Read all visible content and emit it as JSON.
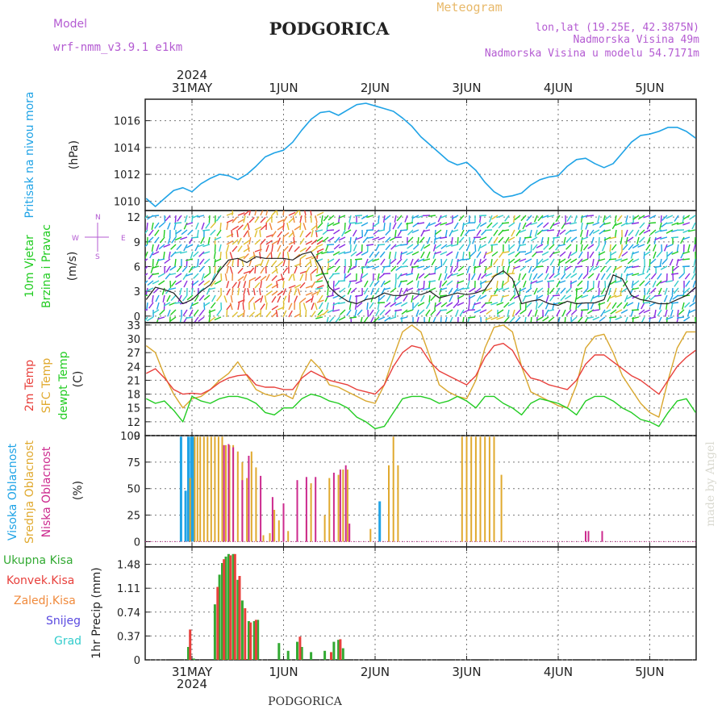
{
  "header": {
    "model_label": "Model",
    "model_name": "wrf-nmm_v3.9.1 e1km",
    "city": "PODGORICA",
    "chart_kind": "Meteogram",
    "lonlat": "lon,lat (19.25E, 42.3875N)",
    "elevation": "Nadmorska Visina 49m",
    "model_elevation": "Nadmorska Visina u modelu 54.7171m",
    "signature": "made by Angel",
    "footer_city": "PODGORICA"
  },
  "time_axis": {
    "year": "2024",
    "labels": [
      "31MAY",
      "1JUN",
      "2JUN",
      "3JUN",
      "4JUN",
      "5JUN"
    ]
  },
  "colors": {
    "pressure": "#1fa3e6",
    "temp2m": "#e8403c",
    "sfc_temp": "#d9a72e",
    "dewpoint": "#22cc22",
    "high_cloud": "#1fa3e6",
    "mid_cloud": "#e0a92e",
    "low_cloud": "#cc2a8e",
    "total_precip": "#33aa33",
    "conv_precip": "#e8403c",
    "wind_purple": "#8a2be2",
    "label_purple": "#b45bd2",
    "meteogram_orange": "#e8b96a"
  },
  "chart_data": [
    {
      "type": "line",
      "panel": "pressure",
      "ylabel_name": "Pritisak na nivou mora",
      "ylabel_unit": "(hPa)",
      "yticks": [
        "1016",
        "1014",
        "1012",
        "1010"
      ],
      "ylim": [
        1009.3,
        1017.6
      ],
      "x_unit": "days from 31MAY 00:00",
      "series": [
        {
          "name": "Pritisak na nivou mora",
          "x": [
            -0.5,
            -0.4,
            -0.3,
            -0.2,
            -0.1,
            0.0,
            0.1,
            0.2,
            0.3,
            0.4,
            0.5,
            0.6,
            0.7,
            0.8,
            0.9,
            1.0,
            1.1,
            1.2,
            1.3,
            1.4,
            1.5,
            1.6,
            1.7,
            1.8,
            1.9,
            2.0,
            2.1,
            2.2,
            2.3,
            2.4,
            2.5,
            2.6,
            2.7,
            2.8,
            2.9,
            3.0,
            3.1,
            3.2,
            3.3,
            3.4,
            3.5,
            3.6,
            3.7,
            3.8,
            3.9,
            4.0,
            4.1,
            4.2,
            4.3,
            4.4,
            4.5,
            4.6,
            4.7,
            4.8,
            4.9,
            5.0,
            5.1,
            5.2,
            5.3,
            5.4,
            5.5
          ],
          "y": [
            1010.2,
            1009.6,
            1010.2,
            1010.8,
            1011.0,
            1010.7,
            1011.3,
            1011.7,
            1012.0,
            1011.9,
            1011.6,
            1012.0,
            1012.6,
            1013.3,
            1013.6,
            1013.8,
            1014.4,
            1015.3,
            1016.1,
            1016.6,
            1016.7,
            1016.4,
            1016.8,
            1017.2,
            1017.3,
            1017.1,
            1016.9,
            1016.7,
            1016.2,
            1015.6,
            1014.8,
            1014.2,
            1013.6,
            1013.0,
            1012.7,
            1012.9,
            1012.3,
            1011.4,
            1010.7,
            1010.3,
            1010.4,
            1010.6,
            1011.2,
            1011.6,
            1011.8,
            1011.9,
            1012.6,
            1013.1,
            1013.2,
            1012.8,
            1012.5,
            1012.8,
            1013.6,
            1014.4,
            1014.9,
            1015.0,
            1015.2,
            1015.5,
            1015.5,
            1015.2,
            1014.7
          ]
        }
      ]
    },
    {
      "type": "line",
      "panel": "wind",
      "ylabel_name": "10m Vjetar",
      "ylabel_sub": "Brzina i Pravac",
      "ylabel_unit": "(m/s)",
      "compass": [
        "W",
        "E",
        "N",
        "S"
      ],
      "yticks": [
        "12",
        "9",
        "6",
        "3",
        "0"
      ],
      "ylim": [
        -0.8,
        12.8
      ],
      "x_unit": "days from 31MAY 00:00",
      "series": [
        {
          "name": "speed",
          "x": [
            -0.5,
            -0.4,
            -0.3,
            -0.2,
            -0.1,
            0.0,
            0.1,
            0.2,
            0.3,
            0.4,
            0.5,
            0.6,
            0.7,
            0.8,
            0.9,
            1.0,
            1.1,
            1.2,
            1.3,
            1.4,
            1.5,
            1.6,
            1.7,
            1.8,
            1.9,
            2.0,
            2.1,
            2.2,
            2.3,
            2.4,
            2.5,
            2.6,
            2.7,
            2.8,
            2.9,
            3.0,
            3.1,
            3.2,
            3.3,
            3.4,
            3.5,
            3.6,
            3.7,
            3.8,
            3.9,
            4.0,
            4.1,
            4.2,
            4.3,
            4.4,
            4.5,
            4.6,
            4.7,
            4.8,
            4.9,
            5.0,
            5.1,
            5.2,
            5.3,
            5.4,
            5.5
          ],
          "y": [
            2.0,
            3.5,
            3.2,
            2.8,
            1.5,
            2.0,
            3.0,
            3.8,
            5.5,
            6.8,
            7.0,
            6.5,
            7.2,
            7.0,
            7.0,
            7.0,
            6.8,
            7.5,
            7.8,
            6.0,
            3.5,
            2.5,
            1.8,
            1.5,
            2.0,
            2.2,
            2.8,
            2.5,
            2.5,
            2.8,
            2.6,
            3.0,
            2.2,
            2.5,
            2.8,
            2.6,
            2.8,
            3.2,
            4.8,
            5.5,
            4.5,
            1.5,
            1.8,
            2.0,
            1.5,
            1.3,
            1.8,
            1.5,
            1.6,
            1.6,
            2.0,
            5.0,
            4.5,
            2.5,
            2.0,
            1.8,
            1.5,
            1.5,
            2.0,
            2.5,
            3.5
          ]
        }
      ]
    },
    {
      "type": "line",
      "panel": "temperature",
      "ylabel_name": [
        "2m Temp",
        "SFC Temp",
        "dewpt Temp"
      ],
      "ylabel_unit": "(C)",
      "yticks": [
        "33",
        "30",
        "27",
        "24",
        "21",
        "18",
        "15",
        "12",
        "9"
      ],
      "ylim": [
        9,
        33.5
      ],
      "x_unit": "days from 31MAY 00:00",
      "series": [
        {
          "name": "2m Temp",
          "x": [
            -0.5,
            -0.4,
            -0.3,
            -0.2,
            -0.1,
            0.0,
            0.1,
            0.2,
            0.3,
            0.4,
            0.5,
            0.6,
            0.7,
            0.8,
            0.9,
            1.0,
            1.1,
            1.2,
            1.3,
            1.4,
            1.5,
            1.6,
            1.7,
            1.8,
            1.9,
            2.0,
            2.1,
            2.2,
            2.3,
            2.4,
            2.5,
            2.6,
            2.7,
            2.8,
            2.9,
            3.0,
            3.1,
            3.2,
            3.3,
            3.4,
            3.5,
            3.6,
            3.7,
            3.8,
            3.9,
            4.0,
            4.1,
            4.2,
            4.3,
            4.4,
            4.5,
            4.6,
            4.7,
            4.8,
            4.9,
            5.0,
            5.1,
            5.2,
            5.3,
            5.4,
            5.5
          ],
          "y": [
            22.5,
            23.5,
            21.5,
            19.0,
            18.0,
            18.2,
            18.0,
            19.0,
            20.5,
            21.5,
            22.0,
            22.2,
            20.0,
            19.5,
            19.5,
            19.0,
            19.0,
            21.5,
            23.0,
            22.0,
            21.0,
            20.5,
            20.0,
            19.0,
            18.5,
            18.0,
            20.0,
            24.0,
            27.0,
            28.5,
            28.0,
            25.0,
            23.0,
            22.0,
            21.0,
            20.0,
            22.0,
            26.0,
            28.5,
            29.0,
            27.5,
            24.0,
            21.5,
            21.0,
            20.0,
            19.5,
            19.0,
            21.0,
            24.5,
            26.5,
            26.5,
            25.0,
            23.5,
            22.0,
            21.0,
            19.5,
            18.0,
            21.0,
            24.0,
            26.0,
            27.5
          ]
        },
        {
          "name": "SFC Temp",
          "x": [
            -0.5,
            -0.4,
            -0.3,
            -0.2,
            -0.1,
            0.0,
            0.1,
            0.2,
            0.3,
            0.4,
            0.5,
            0.6,
            0.7,
            0.8,
            0.9,
            1.0,
            1.1,
            1.2,
            1.3,
            1.4,
            1.5,
            1.6,
            1.7,
            1.8,
            1.9,
            2.0,
            2.1,
            2.2,
            2.3,
            2.4,
            2.5,
            2.6,
            2.7,
            2.8,
            2.9,
            3.0,
            3.1,
            3.2,
            3.3,
            3.4,
            3.5,
            3.6,
            3.7,
            3.8,
            3.9,
            4.0,
            4.1,
            4.2,
            4.3,
            4.4,
            4.5,
            4.6,
            4.7,
            4.8,
            4.9,
            5.0,
            5.1,
            5.2,
            5.3,
            5.4,
            5.5
          ],
          "y": [
            28.5,
            27.0,
            22.0,
            18.0,
            15.0,
            17.0,
            17.5,
            19.0,
            21.0,
            22.5,
            25.0,
            22.0,
            19.0,
            18.0,
            17.5,
            18.0,
            17.0,
            22.0,
            25.5,
            23.5,
            20.0,
            19.5,
            18.5,
            17.5,
            16.5,
            16.0,
            20.0,
            26.0,
            31.5,
            33.0,
            31.5,
            26.0,
            20.0,
            18.5,
            17.5,
            17.0,
            21.0,
            28.0,
            32.5,
            33.0,
            31.5,
            24.0,
            18.5,
            17.5,
            16.5,
            15.5,
            15.0,
            20.0,
            28.0,
            30.5,
            31.0,
            27.0,
            22.0,
            19.0,
            16.0,
            14.0,
            13.0,
            21.0,
            28.0,
            31.5,
            31.5
          ]
        },
        {
          "name": "dewpt Temp",
          "x": [
            -0.5,
            -0.4,
            -0.3,
            -0.2,
            -0.1,
            0.0,
            0.1,
            0.2,
            0.3,
            0.4,
            0.5,
            0.6,
            0.7,
            0.8,
            0.9,
            1.0,
            1.1,
            1.2,
            1.3,
            1.4,
            1.5,
            1.6,
            1.7,
            1.8,
            1.9,
            2.0,
            2.1,
            2.2,
            2.3,
            2.4,
            2.5,
            2.6,
            2.7,
            2.8,
            2.9,
            3.0,
            3.1,
            3.2,
            3.3,
            3.4,
            3.5,
            3.6,
            3.7,
            3.8,
            3.9,
            4.0,
            4.1,
            4.2,
            4.3,
            4.4,
            4.5,
            4.6,
            4.7,
            4.8,
            4.9,
            5.0,
            5.1,
            5.2,
            5.3,
            5.4,
            5.5
          ],
          "y": [
            17.0,
            16.0,
            16.5,
            14.5,
            12.0,
            17.5,
            16.5,
            16.0,
            17.0,
            17.5,
            17.5,
            17.0,
            16.0,
            14.0,
            13.5,
            15.0,
            15.0,
            17.0,
            18.0,
            17.5,
            16.5,
            16.0,
            15.0,
            13.0,
            12.0,
            10.5,
            11.0,
            14.0,
            17.0,
            17.5,
            17.5,
            17.0,
            16.0,
            16.5,
            17.5,
            16.5,
            15.0,
            17.5,
            17.5,
            16.0,
            15.0,
            13.5,
            16.0,
            17.0,
            16.5,
            16.0,
            15.0,
            13.5,
            16.5,
            17.5,
            17.5,
            16.5,
            15.0,
            14.0,
            12.5,
            12.0,
            11.0,
            14.0,
            16.5,
            17.0,
            14.0
          ]
        }
      ]
    },
    {
      "type": "bar",
      "panel": "clouds",
      "ylabel_name": [
        "Visoka Oblacnost",
        "Srednja Oblacnost",
        "Niska Oblacnost"
      ],
      "ylabel_unit": "(%)",
      "yticks": [
        "100",
        "75",
        "50",
        "25",
        "0"
      ],
      "ylim": [
        -5,
        100
      ],
      "x_unit": "days from 31MAY 00:00",
      "series": [
        {
          "name": "Visoka Oblacnost",
          "x": [
            -0.12,
            -0.07,
            -0.04,
            -0.01,
            0.01,
            2.05
          ],
          "y": [
            99,
            48,
            99,
            99,
            99,
            38
          ]
        },
        {
          "name": "Srednja Oblacnost",
          "x": [
            -0.02,
            0.03,
            0.06,
            0.09,
            0.13,
            0.17,
            0.21,
            0.25,
            0.29,
            0.33,
            0.37,
            0.41,
            0.45,
            0.5,
            0.55,
            0.6,
            0.65,
            0.7,
            0.78,
            0.85,
            0.9,
            0.95,
            1.05,
            1.25,
            1.3,
            1.45,
            1.5,
            1.6,
            1.65,
            1.7,
            1.95,
            2.15,
            2.2,
            2.25,
            2.95,
            3.0,
            3.05,
            3.1,
            3.15,
            3.2,
            3.25,
            3.3,
            3.38
          ],
          "y": [
            60,
            99,
            99,
            99,
            99,
            99,
            99,
            99,
            99,
            99,
            91,
            91,
            91,
            85,
            75,
            60,
            85,
            70,
            6,
            8,
            30,
            20,
            10,
            20,
            55,
            25,
            60,
            63,
            68,
            68,
            12,
            72,
            99,
            72,
            99,
            99,
            99,
            99,
            99,
            99,
            99,
            99,
            63
          ]
        },
        {
          "name": "Niska Oblacnost",
          "x": [
            0.35,
            0.4,
            0.45,
            0.55,
            0.62,
            0.75,
            0.88,
            1.0,
            1.15,
            1.25,
            1.35,
            1.55,
            1.62,
            1.68,
            1.72,
            4.3,
            4.33,
            4.48
          ],
          "y": [
            91,
            92,
            89,
            58,
            81,
            62,
            42,
            36,
            58,
            61,
            61,
            65,
            68,
            72,
            17,
            10,
            10,
            10
          ]
        }
      ]
    },
    {
      "type": "bar",
      "panel": "precipitation",
      "ylabel_name": [
        "Ukupna Kisa",
        "Konvek.Kisa",
        "Zaledj.Kisa",
        "Snijeg",
        "Grad"
      ],
      "ylabel_unit": "1hr Precip (mm)",
      "yticks": [
        "1.48",
        "1.11",
        "0.74",
        "0.37",
        "0"
      ],
      "ylim": [
        0,
        1.75
      ],
      "x_unit": "days from 31MAY 00:00",
      "series": [
        {
          "name": "Ukupna Kisa",
          "x": [
            -0.04,
            0.02,
            0.25,
            0.3,
            0.33,
            0.37,
            0.4,
            0.45,
            0.5,
            0.55,
            0.62,
            0.68,
            0.72,
            0.95,
            1.05,
            1.15,
            1.2,
            1.3,
            1.45,
            1.55,
            1.6,
            1.65
          ],
          "y": [
            0.2,
            0.02,
            0.86,
            1.32,
            1.5,
            1.6,
            1.64,
            1.64,
            1.24,
            0.92,
            0.6,
            0.6,
            0.62,
            0.26,
            0.14,
            0.28,
            0.2,
            0.12,
            0.14,
            0.28,
            0.31,
            0.18
          ]
        },
        {
          "name": "Konvek.Kisa",
          "x": [
            -0.02,
            0.28,
            0.35,
            0.42,
            0.47,
            0.52,
            0.58,
            0.64,
            0.7,
            1.18,
            1.52,
            1.62
          ],
          "y": [
            0.47,
            1.13,
            1.56,
            1.62,
            1.64,
            1.3,
            0.8,
            0.58,
            0.62,
            0.36,
            0.12,
            0.32
          ]
        }
      ]
    }
  ]
}
